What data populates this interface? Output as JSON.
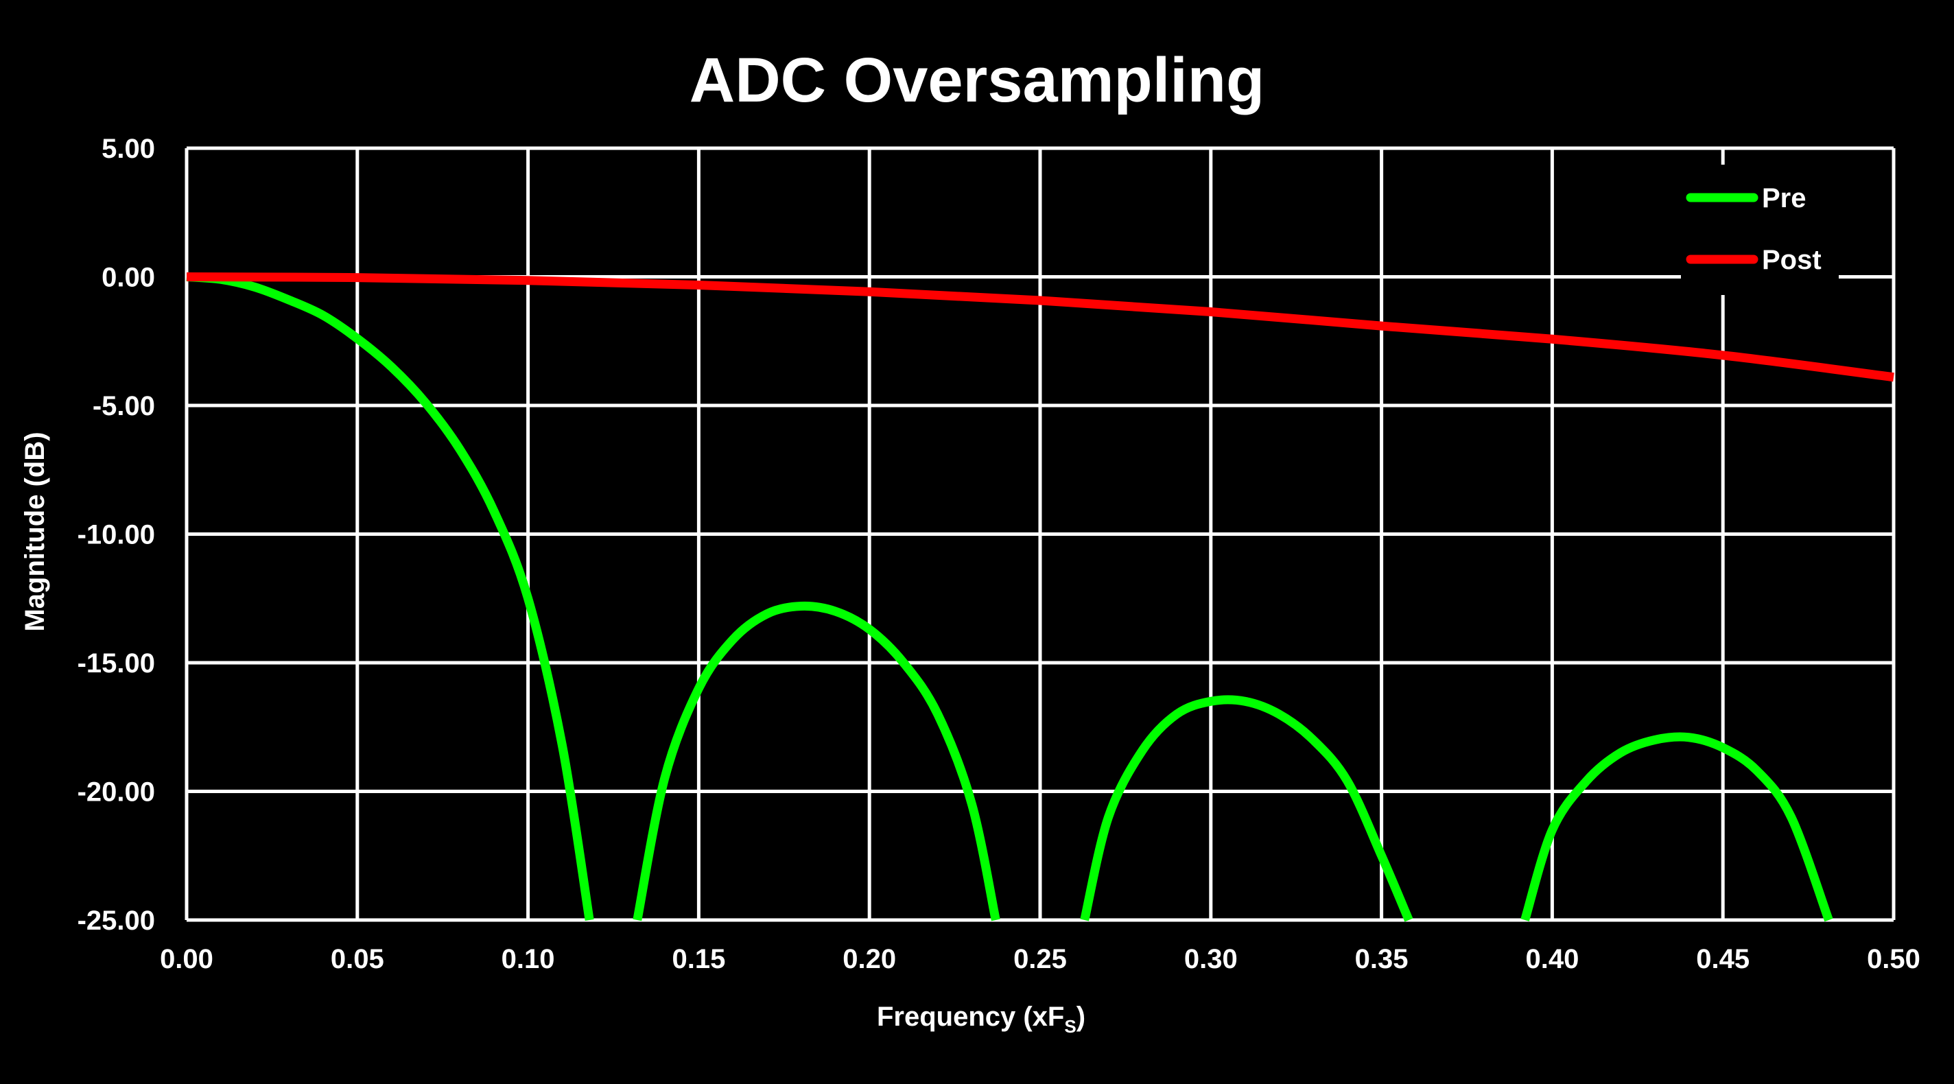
{
  "chart_data": {
    "type": "line",
    "title": "ADC Oversampling",
    "xlabel_main": "Frequency (xF",
    "xlabel_sub": "S",
    "xlabel_end": ")",
    "ylabel": "Magnitude (dB)",
    "xlim": [
      0,
      0.5
    ],
    "ylim": [
      -25,
      5
    ],
    "x_ticks": [
      "0.00",
      "0.05",
      "0.10",
      "0.15",
      "0.20",
      "0.25",
      "0.30",
      "0.35",
      "0.40",
      "0.45",
      "0.50"
    ],
    "y_ticks": [
      "5.00",
      "0.00",
      "-5.00",
      "-10.00",
      "-15.00",
      "-20.00",
      "-25.00"
    ],
    "grid": true,
    "legend_position": "top-right",
    "series": [
      {
        "name": "Pre",
        "color": "#00ff00",
        "x": [
          0,
          0.01,
          0.02,
          0.03,
          0.04,
          0.05,
          0.06,
          0.07,
          0.08,
          0.09,
          0.1,
          0.11,
          0.118,
          0.132,
          0.14,
          0.15,
          0.16,
          0.17,
          0.18,
          0.19,
          0.2,
          0.21,
          0.22,
          0.23,
          0.237,
          0.263,
          0.27,
          0.28,
          0.29,
          0.3,
          0.31,
          0.32,
          0.33,
          0.34,
          0.35,
          0.358,
          0.392,
          0.4,
          0.41,
          0.42,
          0.43,
          0.44,
          0.45,
          0.46,
          0.47,
          0.481
        ],
        "y": [
          0,
          -0.1,
          -0.4,
          -0.9,
          -1.5,
          -2.4,
          -3.5,
          -4.9,
          -6.7,
          -9.1,
          -12.5,
          -18.2,
          -25,
          -25,
          -19.5,
          -16.0,
          -14.1,
          -13.1,
          -12.8,
          -13.0,
          -13.7,
          -15.0,
          -17.0,
          -20.5,
          -25,
          -25,
          -21.0,
          -18.4,
          -17.0,
          -16.5,
          -16.5,
          -17.0,
          -18.0,
          -19.6,
          -22.5,
          -25,
          -25,
          -21.5,
          -19.6,
          -18.5,
          -18.0,
          -17.9,
          -18.3,
          -19.2,
          -21.0,
          -25
        ]
      },
      {
        "name": "Post",
        "color": "#ff0000",
        "x": [
          0,
          0.05,
          0.1,
          0.15,
          0.2,
          0.25,
          0.3,
          0.35,
          0.4,
          0.45,
          0.5
        ],
        "y": [
          0,
          -0.03,
          -0.14,
          -0.32,
          -0.58,
          -0.92,
          -1.36,
          -1.91,
          -2.42,
          -3.05,
          -3.9
        ]
      }
    ]
  }
}
